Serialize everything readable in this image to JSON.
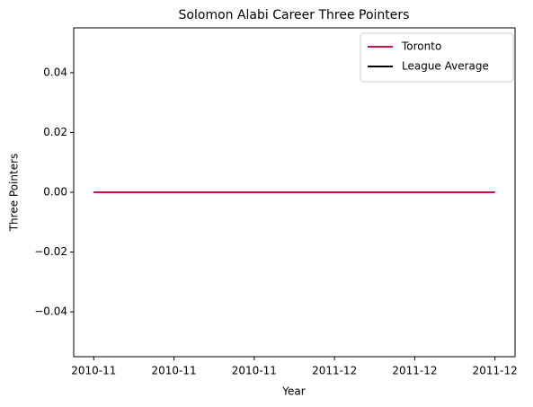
{
  "chart_data": {
    "type": "line",
    "title": "Solomon Alabi Career Three Pointers",
    "xlabel": "Year",
    "ylabel": "Three Pointers",
    "x": [
      0,
      1
    ],
    "series": [
      {
        "name": "Toronto",
        "color": "#ce1141",
        "values": [
          0,
          0
        ]
      },
      {
        "name": "League Average",
        "color": "#000000",
        "values": [
          0,
          0
        ]
      }
    ],
    "xlim": [
      -0.05,
      1.05
    ],
    "xticks": [
      {
        "value": 0,
        "label": "2010-11"
      },
      {
        "value": 0.2,
        "label": "2010-11"
      },
      {
        "value": 0.4,
        "label": "2010-11"
      },
      {
        "value": 0.6,
        "label": "2011-12"
      },
      {
        "value": 0.8,
        "label": "2011-12"
      },
      {
        "value": 1,
        "label": "2011-12"
      }
    ],
    "ylim": [
      -0.055,
      0.055
    ],
    "yticks": [
      {
        "value": -0.04,
        "label": "−0.04"
      },
      {
        "value": -0.02,
        "label": "−0.02"
      },
      {
        "value": 0,
        "label": "0.00"
      },
      {
        "value": 0.02,
        "label": "0.02"
      },
      {
        "value": 0.04,
        "label": "0.04"
      }
    ],
    "legend": "upper right",
    "grid": false
  }
}
